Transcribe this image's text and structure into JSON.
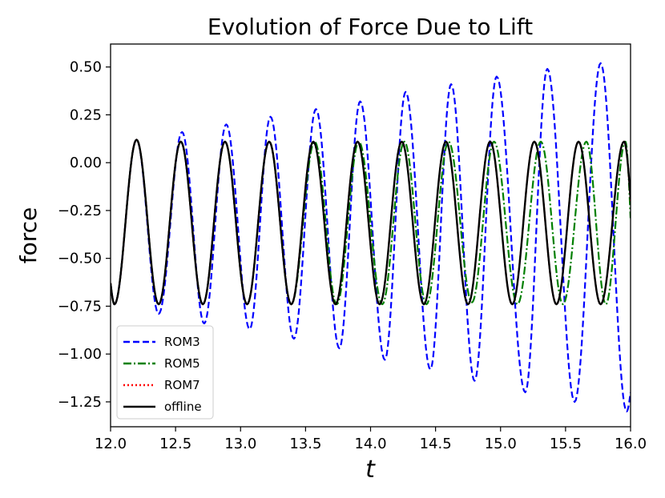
{
  "chart_data": {
    "type": "line",
    "title": "Evolution of Force Due to Lift",
    "xlabel": "t",
    "ylabel": "force",
    "xlim": [
      12.0,
      16.0
    ],
    "ylim": [
      -1.38,
      0.62
    ],
    "xticks": [
      12.0,
      12.5,
      13.0,
      13.5,
      14.0,
      14.5,
      15.0,
      15.5,
      16.0
    ],
    "xtick_labels": [
      "12.0",
      "12.5",
      "13.0",
      "13.5",
      "14.0",
      "14.5",
      "15.0",
      "15.5",
      "16.0"
    ],
    "yticks": [
      0.5,
      0.25,
      0.0,
      -0.25,
      -0.5,
      -0.75,
      -1.0,
      -1.25
    ],
    "ytick_labels": [
      "0.50",
      "0.25",
      "0.00",
      "−0.25",
      "−0.50",
      "−0.75",
      "−1.00",
      "−1.25"
    ],
    "grid": false,
    "legend_position": "lower-left",
    "series": [
      {
        "name": "ROM3",
        "style": "dashed",
        "color": "#0000ff",
        "peaks": [
          [
            12.2,
            0.12
          ],
          [
            12.55,
            0.16
          ],
          [
            12.89,
            0.2
          ],
          [
            13.23,
            0.24
          ],
          [
            13.58,
            0.28
          ],
          [
            13.92,
            0.32
          ],
          [
            14.27,
            0.37
          ],
          [
            14.62,
            0.41
          ],
          [
            14.97,
            0.45
          ],
          [
            15.36,
            0.49
          ],
          [
            15.77,
            0.52
          ]
        ],
        "troughs": [
          [
            12.03,
            -0.74
          ],
          [
            12.37,
            -0.79
          ],
          [
            12.72,
            -0.84
          ],
          [
            13.07,
            -0.87
          ],
          [
            13.41,
            -0.92
          ],
          [
            13.76,
            -0.97
          ],
          [
            14.11,
            -1.03
          ],
          [
            14.46,
            -1.08
          ],
          [
            14.8,
            -1.14
          ],
          [
            15.19,
            -1.2
          ],
          [
            15.57,
            -1.25
          ],
          [
            15.97,
            -1.3
          ]
        ],
        "end": [
          16.0,
          -1.2
        ]
      },
      {
        "name": "ROM5",
        "style": "dashdot",
        "color": "#008000",
        "peaks": [
          [
            12.2,
            0.12
          ],
          [
            12.54,
            0.11
          ],
          [
            12.88,
            0.11
          ],
          [
            13.22,
            0.11
          ],
          [
            13.57,
            0.11
          ],
          [
            13.91,
            0.11
          ],
          [
            14.26,
            0.11
          ],
          [
            14.6,
            0.11
          ],
          [
            14.95,
            0.11
          ],
          [
            15.31,
            0.11
          ],
          [
            15.66,
            0.11
          ],
          [
            15.96,
            0.11
          ]
        ],
        "troughs": [
          [
            12.03,
            -0.74
          ],
          [
            12.37,
            -0.74
          ],
          [
            12.71,
            -0.74
          ],
          [
            13.05,
            -0.74
          ],
          [
            13.39,
            -0.74
          ],
          [
            13.74,
            -0.74
          ],
          [
            14.09,
            -0.74
          ],
          [
            14.43,
            -0.74
          ],
          [
            14.78,
            -0.73
          ],
          [
            15.13,
            -0.74
          ],
          [
            15.48,
            -0.74
          ],
          [
            15.81,
            -0.74
          ]
        ],
        "end": [
          16.0,
          -0.29
        ]
      },
      {
        "name": "ROM7",
        "style": "dotted",
        "color": "#ff0000",
        "peaks": [
          [
            12.2,
            0.12
          ],
          [
            12.54,
            0.11
          ],
          [
            12.88,
            0.11
          ],
          [
            13.22,
            0.11
          ],
          [
            13.56,
            0.11
          ],
          [
            13.9,
            0.11
          ],
          [
            14.24,
            0.11
          ],
          [
            14.58,
            0.11
          ],
          [
            14.92,
            0.11
          ],
          [
            15.26,
            0.11
          ],
          [
            15.6,
            0.11
          ],
          [
            15.95,
            0.11
          ]
        ],
        "troughs": [
          [
            12.03,
            -0.74
          ],
          [
            12.37,
            -0.74
          ],
          [
            12.71,
            -0.74
          ],
          [
            13.05,
            -0.74
          ],
          [
            13.39,
            -0.74
          ],
          [
            13.73,
            -0.74
          ],
          [
            14.07,
            -0.74
          ],
          [
            14.41,
            -0.74
          ],
          [
            14.75,
            -0.74
          ],
          [
            15.09,
            -0.74
          ],
          [
            15.43,
            -0.74
          ],
          [
            15.77,
            -0.74
          ]
        ],
        "end": [
          16.0,
          -0.2
        ]
      },
      {
        "name": "offline",
        "style": "solid",
        "color": "#000000",
        "peaks": [
          [
            12.2,
            0.12
          ],
          [
            12.54,
            0.11
          ],
          [
            12.88,
            0.11
          ],
          [
            13.22,
            0.11
          ],
          [
            13.56,
            0.11
          ],
          [
            13.9,
            0.11
          ],
          [
            14.24,
            0.11
          ],
          [
            14.58,
            0.11
          ],
          [
            14.92,
            0.11
          ],
          [
            15.26,
            0.11
          ],
          [
            15.6,
            0.11
          ],
          [
            15.95,
            0.11
          ]
        ],
        "troughs": [
          [
            12.03,
            -0.74
          ],
          [
            12.37,
            -0.74
          ],
          [
            12.71,
            -0.74
          ],
          [
            13.05,
            -0.74
          ],
          [
            13.39,
            -0.74
          ],
          [
            13.73,
            -0.74
          ],
          [
            14.07,
            -0.74
          ],
          [
            14.41,
            -0.74
          ],
          [
            14.75,
            -0.74
          ],
          [
            15.09,
            -0.74
          ],
          [
            15.43,
            -0.74
          ],
          [
            15.77,
            -0.74
          ]
        ],
        "end": [
          16.0,
          -0.19
        ]
      }
    ]
  }
}
